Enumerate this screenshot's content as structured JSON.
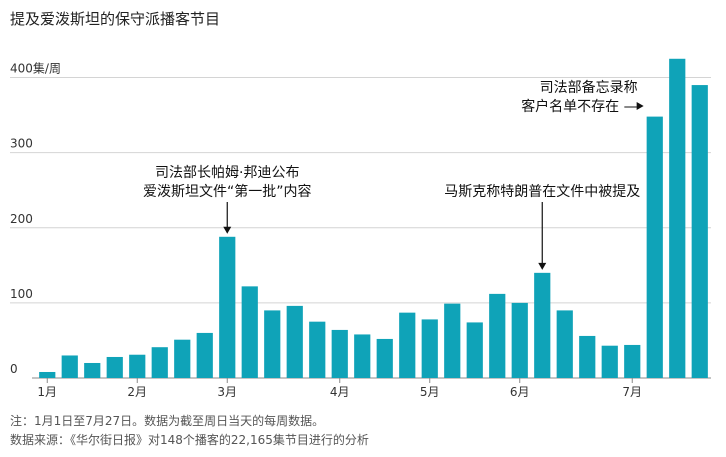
{
  "chart_data": {
    "type": "bar",
    "title": "提及爱泼斯坦的保守派播客节目",
    "y_unit_label": "400集/周",
    "ylim": [
      0,
      450
    ],
    "y_ticks": [
      0,
      100,
      200,
      300,
      400
    ],
    "y_tick_labels": [
      "0",
      "100",
      "200",
      "300",
      "400集/周"
    ],
    "grid": true,
    "bar_color": "#0fa3b8",
    "values": [
      8,
      30,
      20,
      28,
      31,
      41,
      51,
      60,
      188,
      122,
      90,
      96,
      75,
      64,
      58,
      52,
      87,
      78,
      99,
      74,
      112,
      100,
      140,
      90,
      56,
      43,
      44,
      348,
      425,
      390
    ],
    "month_labels": [
      {
        "label": "1月",
        "bar_index": 0
      },
      {
        "label": "2月",
        "bar_index": 4
      },
      {
        "label": "3月",
        "bar_index": 8
      },
      {
        "label": "4月",
        "bar_index": 13
      },
      {
        "label": "5月",
        "bar_index": 17
      },
      {
        "label": "6月",
        "bar_index": 21
      },
      {
        "label": "7月",
        "bar_index": 26
      }
    ],
    "annotations": [
      {
        "lines": [
          "司法部长帕姆·邦迪公布",
          "爱泼斯坦文件“第一批”内容"
        ],
        "bar_index": 8,
        "arrow": "down"
      },
      {
        "lines": [
          "马斯克称特朗普在文件中被提及"
        ],
        "bar_index": 22,
        "arrow": "down"
      },
      {
        "lines": [
          "司法部备忘录称",
          "客户名单不存在 —"
        ],
        "bar_index": 27,
        "arrow": "right"
      }
    ],
    "notes": [
      "注：1月1日至7月27日。数据为截至周日当天的每周数据。",
      "数据来源：《华尔街日报》对148个播客的22,165集节目进行的分析"
    ]
  }
}
